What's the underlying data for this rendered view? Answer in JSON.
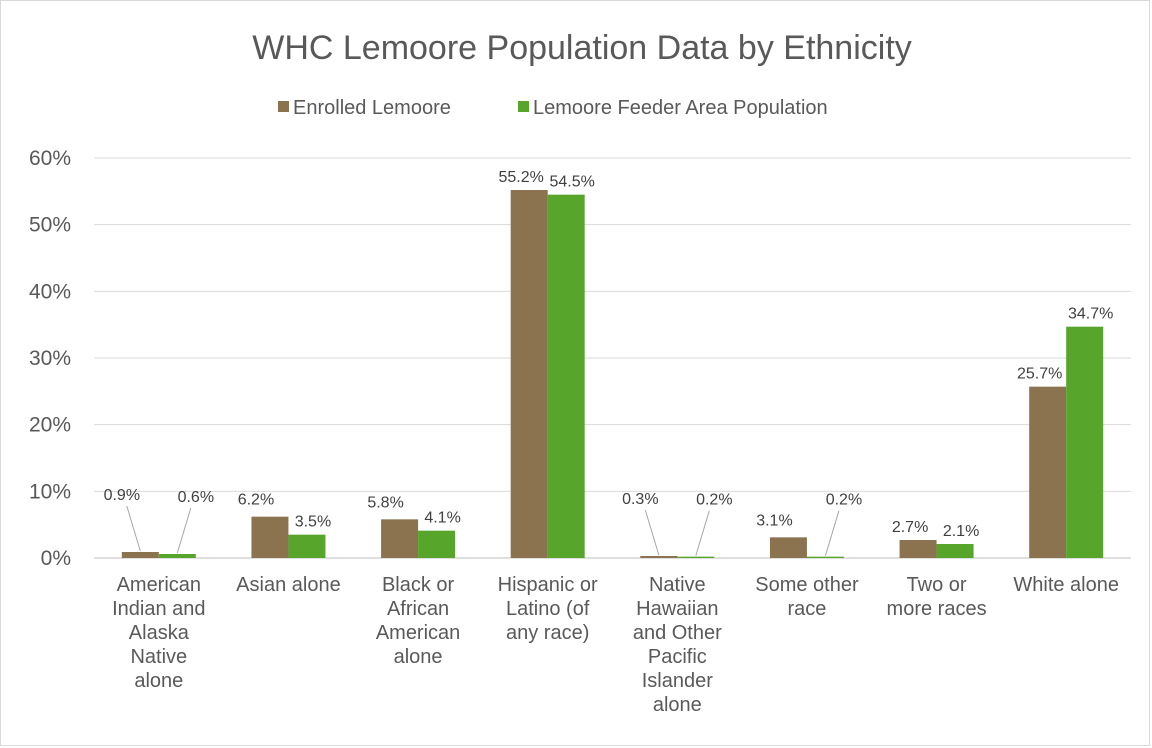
{
  "chart_data": {
    "type": "bar",
    "title": "WHC Lemoore Population Data by Ethnicity",
    "xlabel": "",
    "ylabel": "",
    "ylim": [
      0,
      0.6
    ],
    "y_ticks": [
      "0%",
      "10%",
      "20%",
      "30%",
      "40%",
      "50%",
      "60%"
    ],
    "grid": true,
    "legend_position": "top",
    "categories": [
      [
        "American",
        "Indian and",
        "Alaska",
        "Native",
        "alone"
      ],
      [
        "Asian alone"
      ],
      [
        "Black or",
        "African",
        "American",
        "alone"
      ],
      [
        "Hispanic or",
        "Latino (of",
        "any race)"
      ],
      [
        "Native",
        "Hawaiian",
        "and Other",
        "Pacific",
        "Islander",
        "alone"
      ],
      [
        "Some other",
        "race"
      ],
      [
        "Two or",
        "more races"
      ],
      [
        "White alone"
      ]
    ],
    "series": [
      {
        "name": "Enrolled Lemoore",
        "color": "#8b7350",
        "values": [
          0.009,
          0.062,
          0.058,
          0.552,
          0.003,
          0.031,
          0.027,
          0.257
        ],
        "labels": [
          "0.9%",
          "6.2%",
          "5.8%",
          "55.2%",
          "0.3%",
          "3.1%",
          "2.7%",
          "25.7%"
        ]
      },
      {
        "name": "Lemoore Feeder Area Population",
        "color": "#57a52a",
        "values": [
          0.006,
          0.035,
          0.041,
          0.545,
          0.002,
          0.002,
          0.021,
          0.347
        ],
        "labels": [
          "0.6%",
          "3.5%",
          "4.1%",
          "54.5%",
          "0.2%",
          "0.2%",
          "2.1%",
          "34.7%"
        ]
      }
    ]
  }
}
